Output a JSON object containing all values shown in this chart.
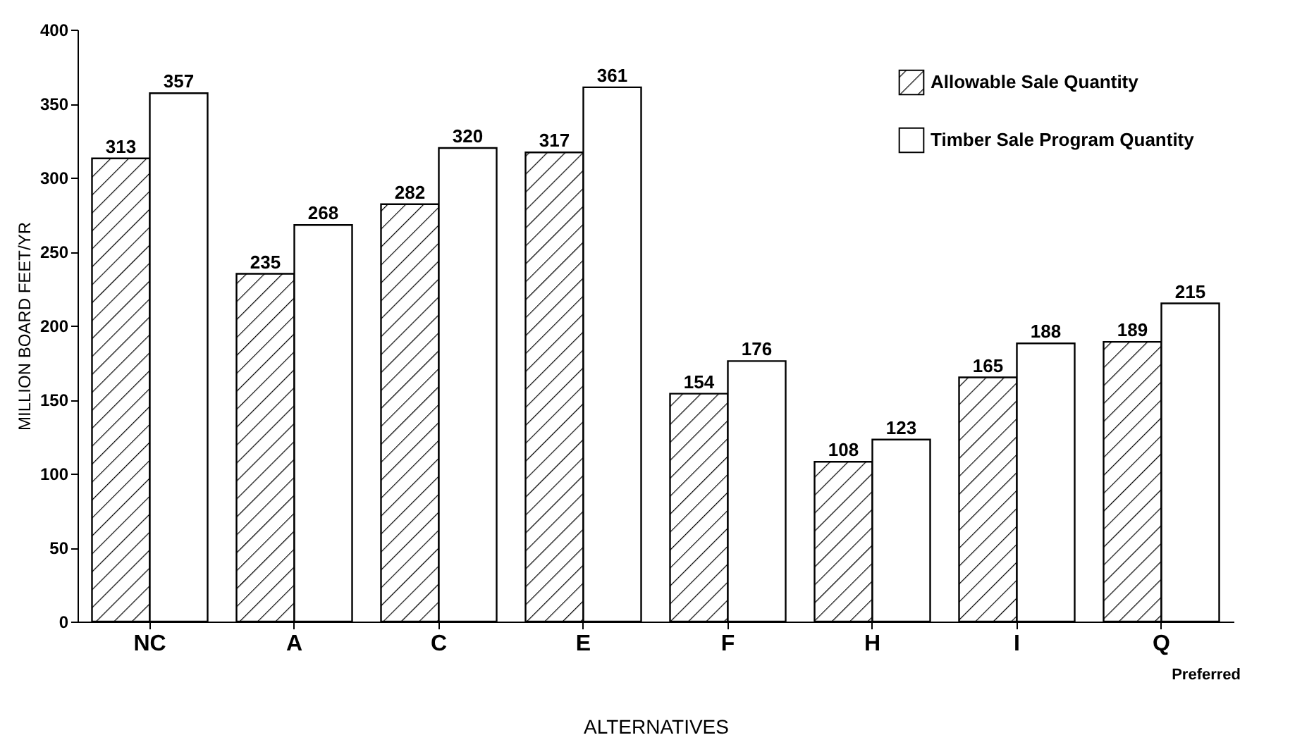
{
  "chart_data": {
    "type": "bar",
    "xlabel": "ALTERNATIVES",
    "ylabel": "MILLION BOARD FEET/YR",
    "categories": [
      "NC",
      "A",
      "C",
      "E",
      "F",
      "H",
      "I",
      "Q"
    ],
    "series": [
      {
        "name": "Allowable Sale Quantity",
        "color": "#000000",
        "values": [
          313,
          235,
          282,
          317,
          154,
          108,
          165,
          189
        ]
      },
      {
        "name": "Timber Sale Program Quantity",
        "color": "#ffffff",
        "values": [
          357,
          268,
          320,
          361,
          176,
          123,
          188,
          215
        ]
      }
    ],
    "ylim": [
      0,
      400
    ],
    "yticks": [
      0,
      50,
      100,
      150,
      200,
      250,
      300,
      350,
      400
    ],
    "data_labels": true,
    "legend": "top right",
    "grid": false,
    "annotations": [
      "Preferred"
    ]
  }
}
